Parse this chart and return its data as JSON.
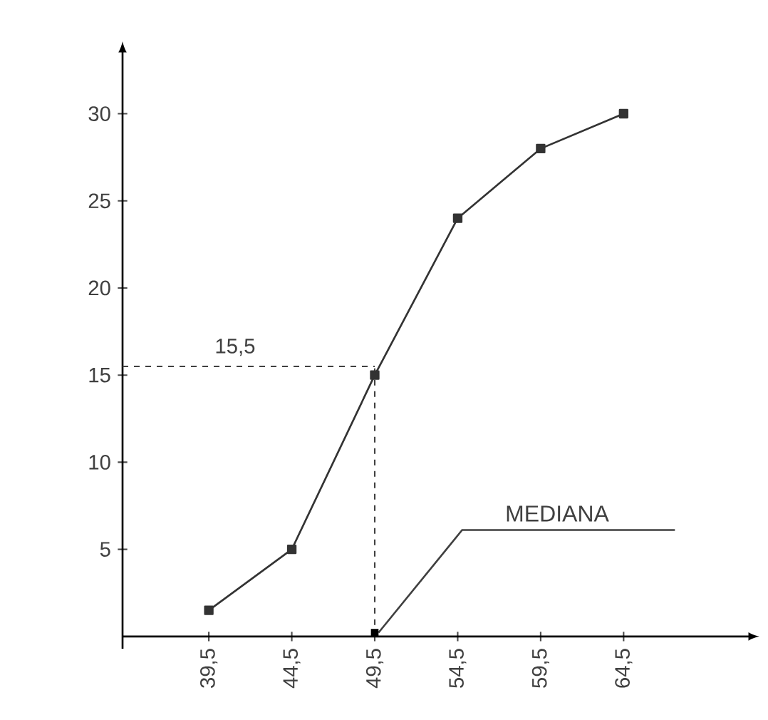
{
  "chart_data": {
    "type": "line",
    "x": [
      39.5,
      44.5,
      49.5,
      54.5,
      59.5,
      64.5
    ],
    "values": [
      1.5,
      5,
      15,
      24,
      28,
      30
    ],
    "color": "#333333",
    "marker": "square",
    "line_style": "solid",
    "xlim": [
      34.3,
      72
    ],
    "ylim": [
      -0.7,
      33.5
    ],
    "xticks": [
      {
        "value": 39.5,
        "label": "39,5"
      },
      {
        "value": 44.5,
        "label": "44,5"
      },
      {
        "value": 49.5,
        "label": "49,5"
      },
      {
        "value": 54.5,
        "label": "54,5"
      },
      {
        "value": 59.5,
        "label": "59,5"
      },
      {
        "value": 64.5,
        "label": "64,5"
      }
    ],
    "yticks": [
      5,
      10,
      15,
      20,
      25,
      30
    ],
    "ref_lines": [
      {
        "axis": "y",
        "value": 15.5,
        "label": "15,5",
        "color": "#404040",
        "line_style": "dashed"
      },
      {
        "axis": "x",
        "value": 49.5,
        "label": "MEDIANA",
        "color": "#404040",
        "line_style": "dashed"
      }
    ]
  }
}
